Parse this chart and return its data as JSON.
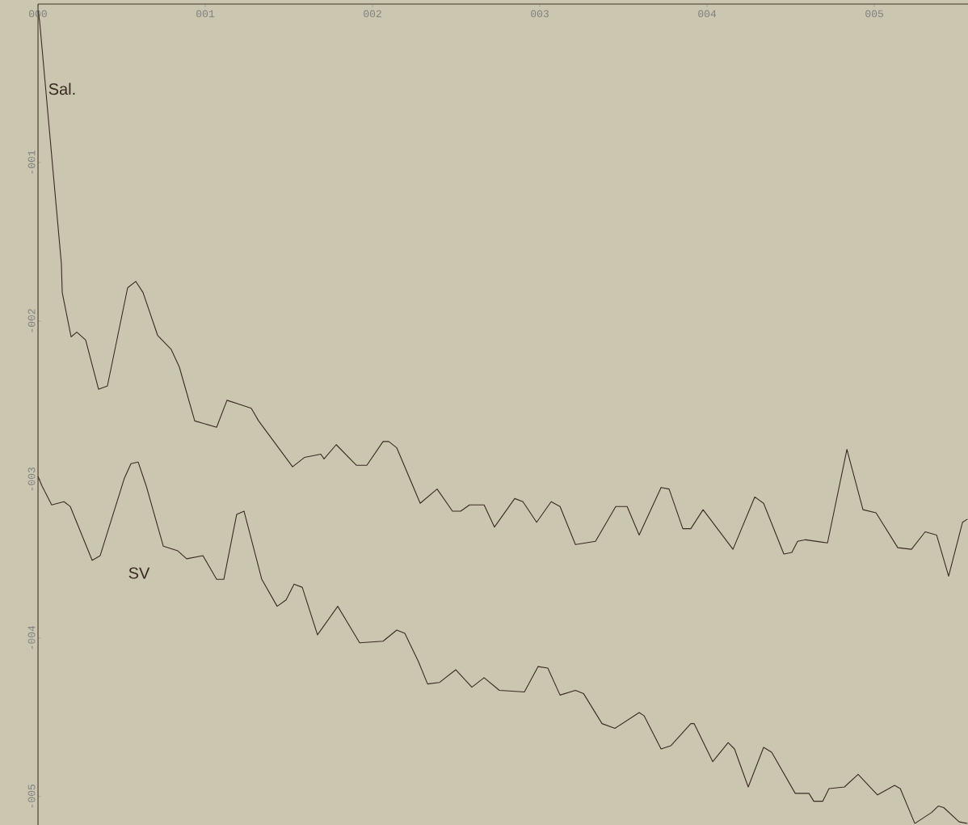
{
  "chart_data": {
    "type": "line",
    "line_style": "solid",
    "xlim": [
      0,
      5.56
    ],
    "ylim": [
      -5.18,
      0
    ],
    "xticks": [
      {
        "value": 0,
        "label": "000"
      },
      {
        "value": 1,
        "label": "001"
      },
      {
        "value": 2,
        "label": "002"
      },
      {
        "value": 3,
        "label": "003"
      },
      {
        "value": 4,
        "label": "004"
      },
      {
        "value": 5,
        "label": "005"
      }
    ],
    "yticks": [
      {
        "value": -1,
        "label": "-001"
      },
      {
        "value": -2,
        "label": "-002"
      },
      {
        "value": -3,
        "label": "-003"
      },
      {
        "value": -4,
        "label": "-004"
      },
      {
        "value": -5,
        "label": "-005"
      }
    ],
    "series": [
      {
        "name": "Sal.",
        "color": "#3a2a22",
        "x": [
          0,
          0.01,
          0.14,
          0.145,
          0.198,
          0.232,
          0.285,
          0.362,
          0.415,
          0.536,
          0.585,
          0.628,
          0.715,
          0.797,
          0.845,
          0.937,
          1.068,
          1.13,
          1.217,
          1.275,
          1.319,
          1.522,
          1.594,
          1.691,
          1.71,
          1.783,
          1.903,
          1.966,
          2.063,
          2.097,
          2.145,
          2.285,
          2.386,
          2.478,
          2.527,
          2.58,
          2.667,
          2.729,
          2.85,
          2.899,
          2.981,
          3.068,
          3.121,
          3.213,
          3.333,
          3.454,
          3.522,
          3.594,
          3.725,
          3.773,
          3.855,
          3.903,
          3.976,
          4.155,
          4.285,
          4.338,
          4.459,
          4.507,
          4.541,
          4.589,
          4.72,
          4.836,
          4.932,
          5.01,
          5.14,
          5.222,
          5.304,
          5.372,
          5.444,
          5.527,
          5.556
        ],
        "values": [
          -0.04,
          -0.11,
          -1.64,
          -1.82,
          -2.1,
          -2.07,
          -2.12,
          -2.43,
          -2.41,
          -1.79,
          -1.75,
          -1.82,
          -2.09,
          -2.18,
          -2.29,
          -2.63,
          -2.67,
          -2.5,
          -2.53,
          -2.55,
          -2.63,
          -2.92,
          -2.86,
          -2.84,
          -2.87,
          -2.78,
          -2.91,
          -2.91,
          -2.76,
          -2.76,
          -2.8,
          -3.15,
          -3.06,
          -3.2,
          -3.2,
          -3.16,
          -3.16,
          -3.3,
          -3.12,
          -3.14,
          -3.27,
          -3.14,
          -3.17,
          -3.41,
          -3.39,
          -3.17,
          -3.17,
          -3.35,
          -3.05,
          -3.06,
          -3.31,
          -3.31,
          -3.19,
          -3.44,
          -3.11,
          -3.15,
          -3.47,
          -3.46,
          -3.39,
          -3.38,
          -3.4,
          -2.81,
          -3.19,
          -3.21,
          -3.43,
          -3.44,
          -3.33,
          -3.35,
          -3.61,
          -3.27,
          -3.25
        ]
      },
      {
        "name": "SV",
        "color": "#3a2a22",
        "x": [
          0,
          0.024,
          0.082,
          0.155,
          0.193,
          0.324,
          0.372,
          0.517,
          0.556,
          0.599,
          0.647,
          0.749,
          0.836,
          0.889,
          0.986,
          1.068,
          1.111,
          1.188,
          1.232,
          1.338,
          1.43,
          1.483,
          1.531,
          1.58,
          1.671,
          1.792,
          1.923,
          2.063,
          2.145,
          2.193,
          2.275,
          2.329,
          2.401,
          2.498,
          2.594,
          2.667,
          2.758,
          2.908,
          2.99,
          3.048,
          3.121,
          3.213,
          3.261,
          3.372,
          3.449,
          3.594,
          3.623,
          3.725,
          3.783,
          3.903,
          3.923,
          4.034,
          4.126,
          4.164,
          4.246,
          4.338,
          4.386,
          4.527,
          4.609,
          4.638,
          4.691,
          4.729,
          4.821,
          4.903,
          5.019,
          5.121,
          5.155,
          5.242,
          5.343,
          5.382,
          5.415,
          5.507,
          5.556
        ],
        "values": [
          -2.98,
          -3.04,
          -3.16,
          -3.14,
          -3.17,
          -3.51,
          -3.48,
          -2.99,
          -2.9,
          -2.89,
          -3.04,
          -3.42,
          -3.45,
          -3.5,
          -3.48,
          -3.63,
          -3.63,
          -3.22,
          -3.2,
          -3.63,
          -3.8,
          -3.76,
          -3.66,
          -3.68,
          -3.98,
          -3.8,
          -4.03,
          -4.02,
          -3.95,
          -3.97,
          -4.15,
          -4.29,
          -4.28,
          -4.2,
          -4.31,
          -4.25,
          -4.33,
          -4.34,
          -4.18,
          -4.19,
          -4.36,
          -4.33,
          -4.35,
          -4.54,
          -4.57,
          -4.47,
          -4.49,
          -4.7,
          -4.68,
          -4.54,
          -4.54,
          -4.78,
          -4.66,
          -4.7,
          -4.94,
          -4.69,
          -4.72,
          -4.98,
          -4.98,
          -5.03,
          -5.03,
          -4.95,
          -4.94,
          -4.86,
          -4.99,
          -4.93,
          -4.95,
          -5.17,
          -5.1,
          -5.06,
          -5.07,
          -5.16,
          -5.17
        ]
      }
    ]
  }
}
